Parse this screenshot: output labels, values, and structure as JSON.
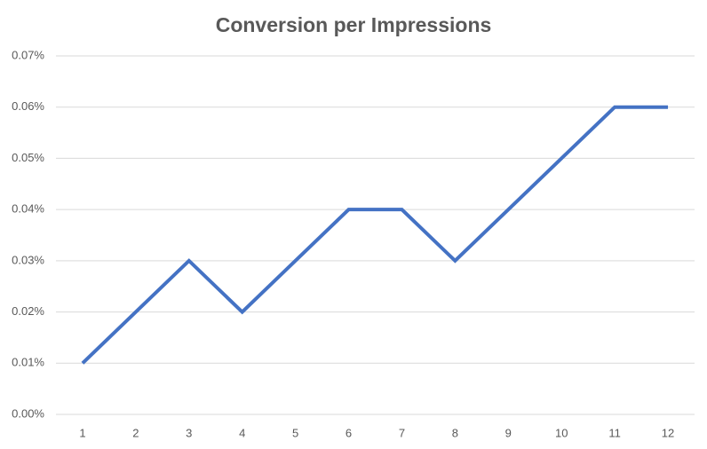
{
  "chart_data": {
    "type": "line",
    "title": "Conversion per Impressions",
    "categories": [
      "1",
      "2",
      "3",
      "4",
      "5",
      "6",
      "7",
      "8",
      "9",
      "10",
      "11",
      "12"
    ],
    "series": [
      {
        "name": "Conversion per Impressions",
        "color": "#4472c4",
        "values": [
          0.01,
          0.02,
          0.03,
          0.02,
          0.03,
          0.04,
          0.04,
          0.03,
          0.04,
          0.05,
          0.06,
          0.06
        ]
      }
    ],
    "ylim": [
      0,
      0.07
    ],
    "yticks": [
      {
        "value": 0,
        "label": "0.00%"
      },
      {
        "value": 0.01,
        "label": "0.01%"
      },
      {
        "value": 0.02,
        "label": "0.02%"
      },
      {
        "value": 0.03,
        "label": "0.03%"
      },
      {
        "value": 0.04,
        "label": "0.04%"
      },
      {
        "value": 0.05,
        "label": "0.05%"
      },
      {
        "value": 0.06,
        "label": "0.06%"
      },
      {
        "value": 0.07,
        "label": "0.07%"
      }
    ],
    "grid": true
  }
}
